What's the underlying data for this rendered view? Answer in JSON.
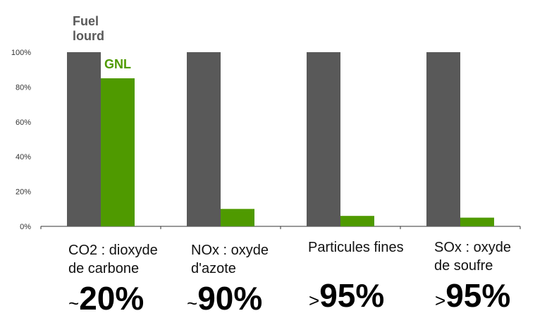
{
  "colors": {
    "fuel": "#595959",
    "gnl": "#4f9a00",
    "axis": "#333333"
  },
  "chart_data": {
    "type": "bar",
    "categories": [
      "CO2 : dioxyde de carbone",
      "NOx : oxyde d'azote",
      "Particules fines",
      "SOx : oxyde de soufre"
    ],
    "series": [
      {
        "name": "Fuel lourd",
        "values": [
          100,
          100,
          100,
          100
        ]
      },
      {
        "name": "GNL",
        "values": [
          85,
          10,
          6,
          5
        ]
      }
    ],
    "ylim": [
      0,
      100
    ],
    "yticks": [
      "0%",
      "20%",
      "40%",
      "60%",
      "80%",
      "100%"
    ],
    "grid": false,
    "legend": "inline-top-left"
  },
  "legend": {
    "fuel": "Fuel lourd",
    "gnl": "GNL"
  },
  "categories": [
    {
      "line1": "CO2 : dioxyde",
      "line2": "de carbone",
      "prefix": "~",
      "value": "20%"
    },
    {
      "line1": "NOx : oxyde",
      "line2": "d'azote",
      "prefix": "~",
      "value": "90%"
    },
    {
      "line1": "Particules fines",
      "line2": "",
      "prefix": ">",
      "value": "95%"
    },
    {
      "line1": "SOx : oxyde",
      "line2": "de soufre",
      "prefix": ">",
      "value": "95%"
    }
  ]
}
